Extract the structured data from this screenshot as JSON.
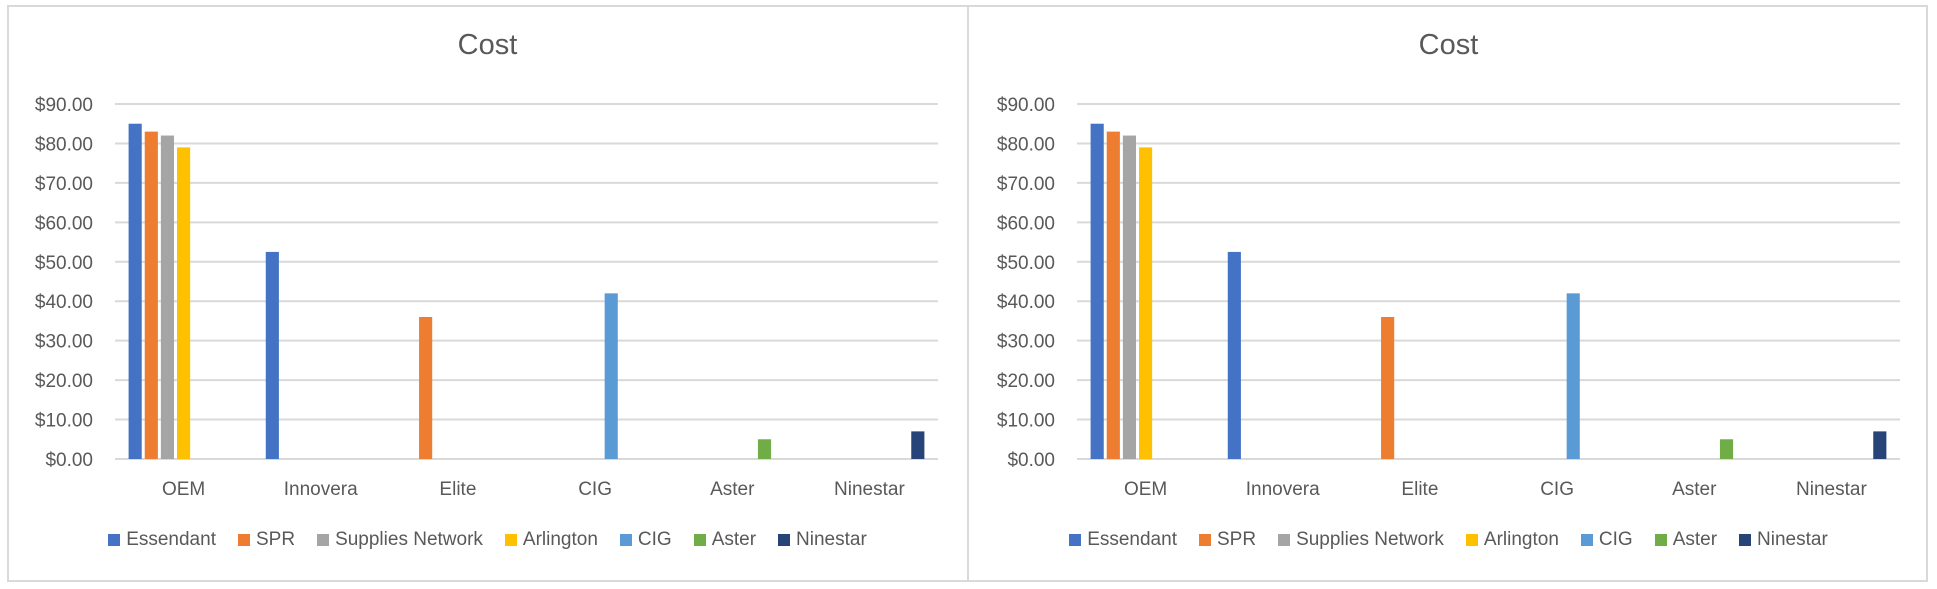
{
  "colors": {
    "border": "#d9d9d9",
    "gridline": "#d9d9d9",
    "text": "#595959"
  },
  "chart_data": [
    {
      "type": "bar",
      "title": "Cost",
      "xlabel": "",
      "ylabel": "",
      "ylim": [
        0,
        90
      ],
      "yticks": [
        "$0.00",
        "$10.00",
        "$20.00",
        "$30.00",
        "$40.00",
        "$50.00",
        "$60.00",
        "$70.00",
        "$80.00",
        "$90.00"
      ],
      "grid": true,
      "legend_position": "bottom",
      "categories": [
        "OEM",
        "Innovera",
        "Elite",
        "CIG",
        "Aster",
        "Ninestar"
      ],
      "series": [
        {
          "name": "Essendant",
          "color": "#4472c4",
          "values": [
            85.0,
            52.5,
            null,
            null,
            null,
            null
          ]
        },
        {
          "name": "SPR",
          "color": "#ed7d31",
          "values": [
            83.0,
            null,
            36.0,
            null,
            null,
            null
          ]
        },
        {
          "name": "Supplies Network",
          "color": "#a5a5a5",
          "values": [
            82.0,
            null,
            null,
            null,
            null,
            null
          ]
        },
        {
          "name": "Arlington",
          "color": "#ffc000",
          "values": [
            79.0,
            null,
            null,
            null,
            null,
            null
          ]
        },
        {
          "name": "CIG",
          "color": "#5b9bd5",
          "values": [
            null,
            null,
            null,
            42.0,
            null,
            null
          ]
        },
        {
          "name": "Aster",
          "color": "#70ad47",
          "values": [
            null,
            null,
            null,
            null,
            5.0,
            null
          ]
        },
        {
          "name": "Ninestar",
          "color": "#264478",
          "values": [
            null,
            null,
            null,
            null,
            null,
            7.0
          ]
        }
      ]
    },
    {
      "type": "bar",
      "title": "Cost",
      "xlabel": "",
      "ylabel": "",
      "ylim": [
        0,
        90
      ],
      "yticks": [
        "$0.00",
        "$10.00",
        "$20.00",
        "$30.00",
        "$40.00",
        "$50.00",
        "$60.00",
        "$70.00",
        "$80.00",
        "$90.00"
      ],
      "grid": true,
      "legend_position": "bottom",
      "categories": [
        "OEM",
        "Innovera",
        "Elite",
        "CIG",
        "Aster",
        "Ninestar"
      ],
      "series": [
        {
          "name": "Essendant",
          "color": "#4472c4",
          "values": [
            85.0,
            52.5,
            null,
            null,
            null,
            null
          ]
        },
        {
          "name": "SPR",
          "color": "#ed7d31",
          "values": [
            83.0,
            null,
            36.0,
            null,
            null,
            null
          ]
        },
        {
          "name": "Supplies Network",
          "color": "#a5a5a5",
          "values": [
            82.0,
            null,
            null,
            null,
            null,
            null
          ]
        },
        {
          "name": "Arlington",
          "color": "#ffc000",
          "values": [
            79.0,
            null,
            null,
            null,
            null,
            null
          ]
        },
        {
          "name": "CIG",
          "color": "#5b9bd5",
          "values": [
            null,
            null,
            null,
            42.0,
            null,
            null
          ]
        },
        {
          "name": "Aster",
          "color": "#70ad47",
          "values": [
            null,
            null,
            null,
            null,
            5.0,
            null
          ]
        },
        {
          "name": "Ninestar",
          "color": "#264478",
          "values": [
            null,
            null,
            null,
            null,
            null,
            7.0
          ]
        }
      ]
    }
  ]
}
